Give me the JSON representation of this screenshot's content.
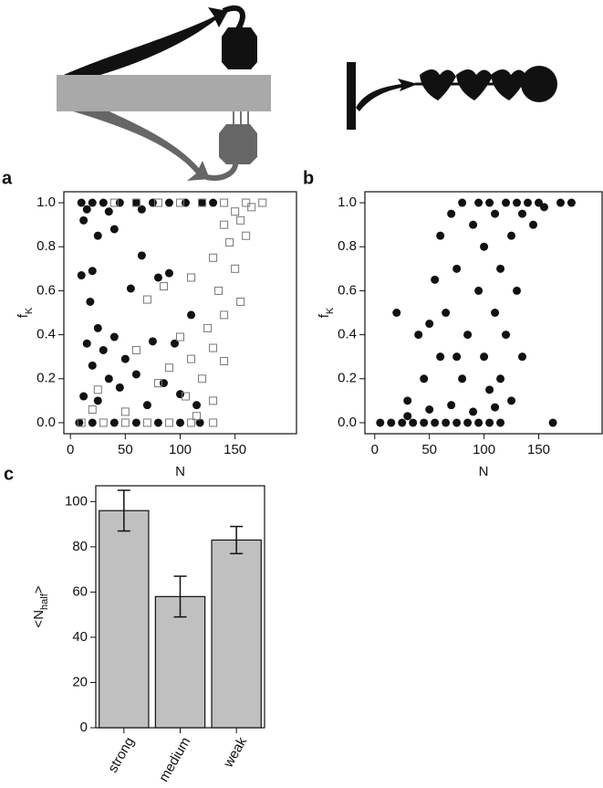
{
  "chart_data": [
    {
      "type": "scatter",
      "panel": "a",
      "xlabel": "N",
      "ylabel": [
        "f",
        "K"
      ],
      "xlim": [
        -6,
        206
      ],
      "ylim": [
        -0.05,
        1.05
      ],
      "xticks": [
        0,
        50,
        100,
        150
      ],
      "yticks": [
        {
          "value": 0,
          "label": "0.0"
        },
        0.2,
        0.4,
        0.6,
        0.8,
        {
          "value": 1,
          "label": "1.0"
        }
      ],
      "series": [
        {
          "marker": "circle",
          "color": "#111111",
          "x": [
            10,
            20,
            30,
            45,
            60,
            75,
            90,
            105,
            120,
            130,
            15,
            35,
            65,
            12,
            40,
            25,
            10,
            20,
            65,
            80,
            90,
            55,
            18,
            110,
            25,
            40,
            15,
            30,
            75,
            95,
            50,
            60,
            20,
            35,
            45,
            85,
            100,
            12,
            25,
            70,
            115,
            8,
            20,
            40,
            60,
            80,
            100,
            118
          ],
          "values": [
            1,
            1,
            1,
            1,
            1,
            1,
            1,
            1,
            1,
            1,
            0.97,
            0.96,
            0.97,
            0.92,
            0.88,
            0.85,
            0.67,
            0.69,
            0.76,
            0.66,
            0.68,
            0.61,
            0.55,
            0.49,
            0.43,
            0.39,
            0.36,
            0.33,
            0.37,
            0.36,
            0.29,
            0.22,
            0.26,
            0.2,
            0.16,
            0.18,
            0.13,
            0.12,
            0.1,
            0.08,
            0.08,
            0,
            0,
            0,
            0,
            0,
            0,
            0
          ]
        },
        {
          "marker": "square",
          "color": "#777777",
          "x": [
            40,
            60,
            80,
            100,
            120,
            140,
            160,
            175,
            150,
            165,
            140,
            155,
            145,
            160,
            130,
            150,
            135,
            155,
            110,
            85,
            70,
            140,
            125,
            100,
            130,
            60,
            110,
            90,
            140,
            120,
            80,
            25,
            105,
            130,
            20,
            50,
            115,
            10,
            30,
            50,
            70,
            90,
            110,
            130
          ],
          "values": [
            1,
            1,
            1,
            1,
            1,
            1,
            1,
            1,
            0.96,
            0.98,
            0.9,
            0.92,
            0.82,
            0.85,
            0.75,
            0.7,
            0.6,
            0.55,
            0.66,
            0.62,
            0.56,
            0.49,
            0.43,
            0.39,
            0.34,
            0.33,
            0.29,
            0.25,
            0.28,
            0.2,
            0.18,
            0.15,
            0.12,
            0.1,
            0.06,
            0.05,
            0.03,
            0,
            0,
            0,
            0,
            0,
            0,
            0
          ]
        }
      ]
    },
    {
      "type": "scatter",
      "panel": "b",
      "xlabel": "N",
      "ylabel": [
        "f",
        "K"
      ],
      "xlim": [
        -9,
        208
      ],
      "ylim": [
        -0.05,
        1.05
      ],
      "xticks": [
        0,
        50,
        100,
        150
      ],
      "yticks": [
        {
          "value": 0,
          "label": "0.0"
        },
        0.2,
        0.4,
        0.6,
        0.8,
        {
          "value": 1,
          "label": "1.0"
        }
      ],
      "series": [
        {
          "marker": "circle",
          "color": "#111111",
          "x": [
            5,
            15,
            25,
            35,
            45,
            55,
            65,
            75,
            85,
            95,
            105,
            115,
            30,
            50,
            70,
            90,
            110,
            20,
            40,
            45,
            55,
            60,
            60,
            65,
            70,
            75,
            80,
            80,
            85,
            90,
            95,
            95,
            100,
            100,
            105,
            110,
            110,
            115,
            115,
            120,
            120,
            125,
            125,
            130,
            130,
            135,
            135,
            140,
            145,
            150,
            155,
            170,
            180,
            163,
            30,
            50,
            75,
            105
          ],
          "values": [
            0,
            0,
            0,
            0,
            0,
            0,
            0,
            0,
            0,
            0,
            0,
            0,
            0.03,
            0.06,
            0.08,
            0.05,
            0.07,
            0.5,
            0.4,
            0.2,
            0.65,
            0.3,
            0.85,
            0.5,
            0.95,
            0.7,
            0.2,
            1,
            0.4,
            0.9,
            0.6,
            1,
            0.3,
            0.8,
            1,
            0.5,
            0.95,
            0.2,
            0.7,
            1,
            0.4,
            0.85,
            0.1,
            1,
            0.6,
            0.95,
            0.3,
            1,
            0.9,
            1,
            0.98,
            1,
            1,
            0,
            0.1,
            0.45,
            0.3,
            0.15
          ]
        }
      ]
    },
    {
      "type": "bar",
      "panel": "c",
      "ylabel": [
        "<N",
        "half",
        ">"
      ],
      "categories": [
        "strong",
        "medium",
        "weak"
      ],
      "values": [
        96,
        58,
        83
      ],
      "errors": [
        9,
        9,
        6
      ],
      "color": "#c0c0c0",
      "ylim": [
        0,
        107
      ],
      "yticks": [
        0,
        20,
        40,
        60,
        80,
        100
      ]
    }
  ]
}
